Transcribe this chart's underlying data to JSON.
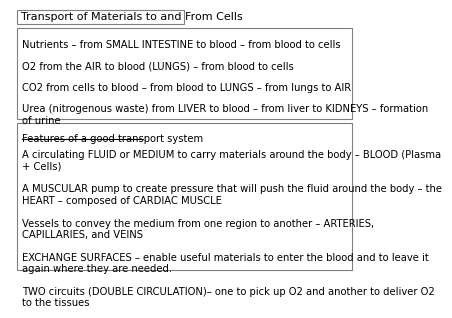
{
  "title": "Transport of Materials to and From Cells",
  "box1_lines": [
    "Nutrients – from SMALL INTESTINE to blood – from blood to cells",
    "O2 from the AIR to blood (LUNGS) – from blood to cells",
    "CO2 from cells to blood – from blood to LUNGS – from lungs to AIR",
    "Urea (nitrogenous waste) from LIVER to blood – from liver to KIDNEYS – formation\nof urine"
  ],
  "box2_header": "Features of a good transport system",
  "box2_lines": [
    "A circulating FLUID or MEDIUM to carry materials around the body – BLOOD (Plasma\n+ Cells)",
    "A MUSCULAR pump to create pressure that will push the fluid around the body – the\nHEART – composed of CARDIAC MUSCLE",
    "Vessels to convey the medium from one region to another – ARTERIES,\nCAPILLARIES, and VEINS",
    "EXCHANGE SURFACES – enable useful materials to enter the blood and to leave it\nagain where they are needed.",
    "TWO circuits (DOUBLE CIRCULATION)– one to pick up O2 and another to deliver O2\nto the tissues"
  ],
  "bg_color": "#ffffff",
  "text_color": "#000000",
  "border_color": "#7f7f7f",
  "font_size": 7.2,
  "title_font_size": 8.0
}
